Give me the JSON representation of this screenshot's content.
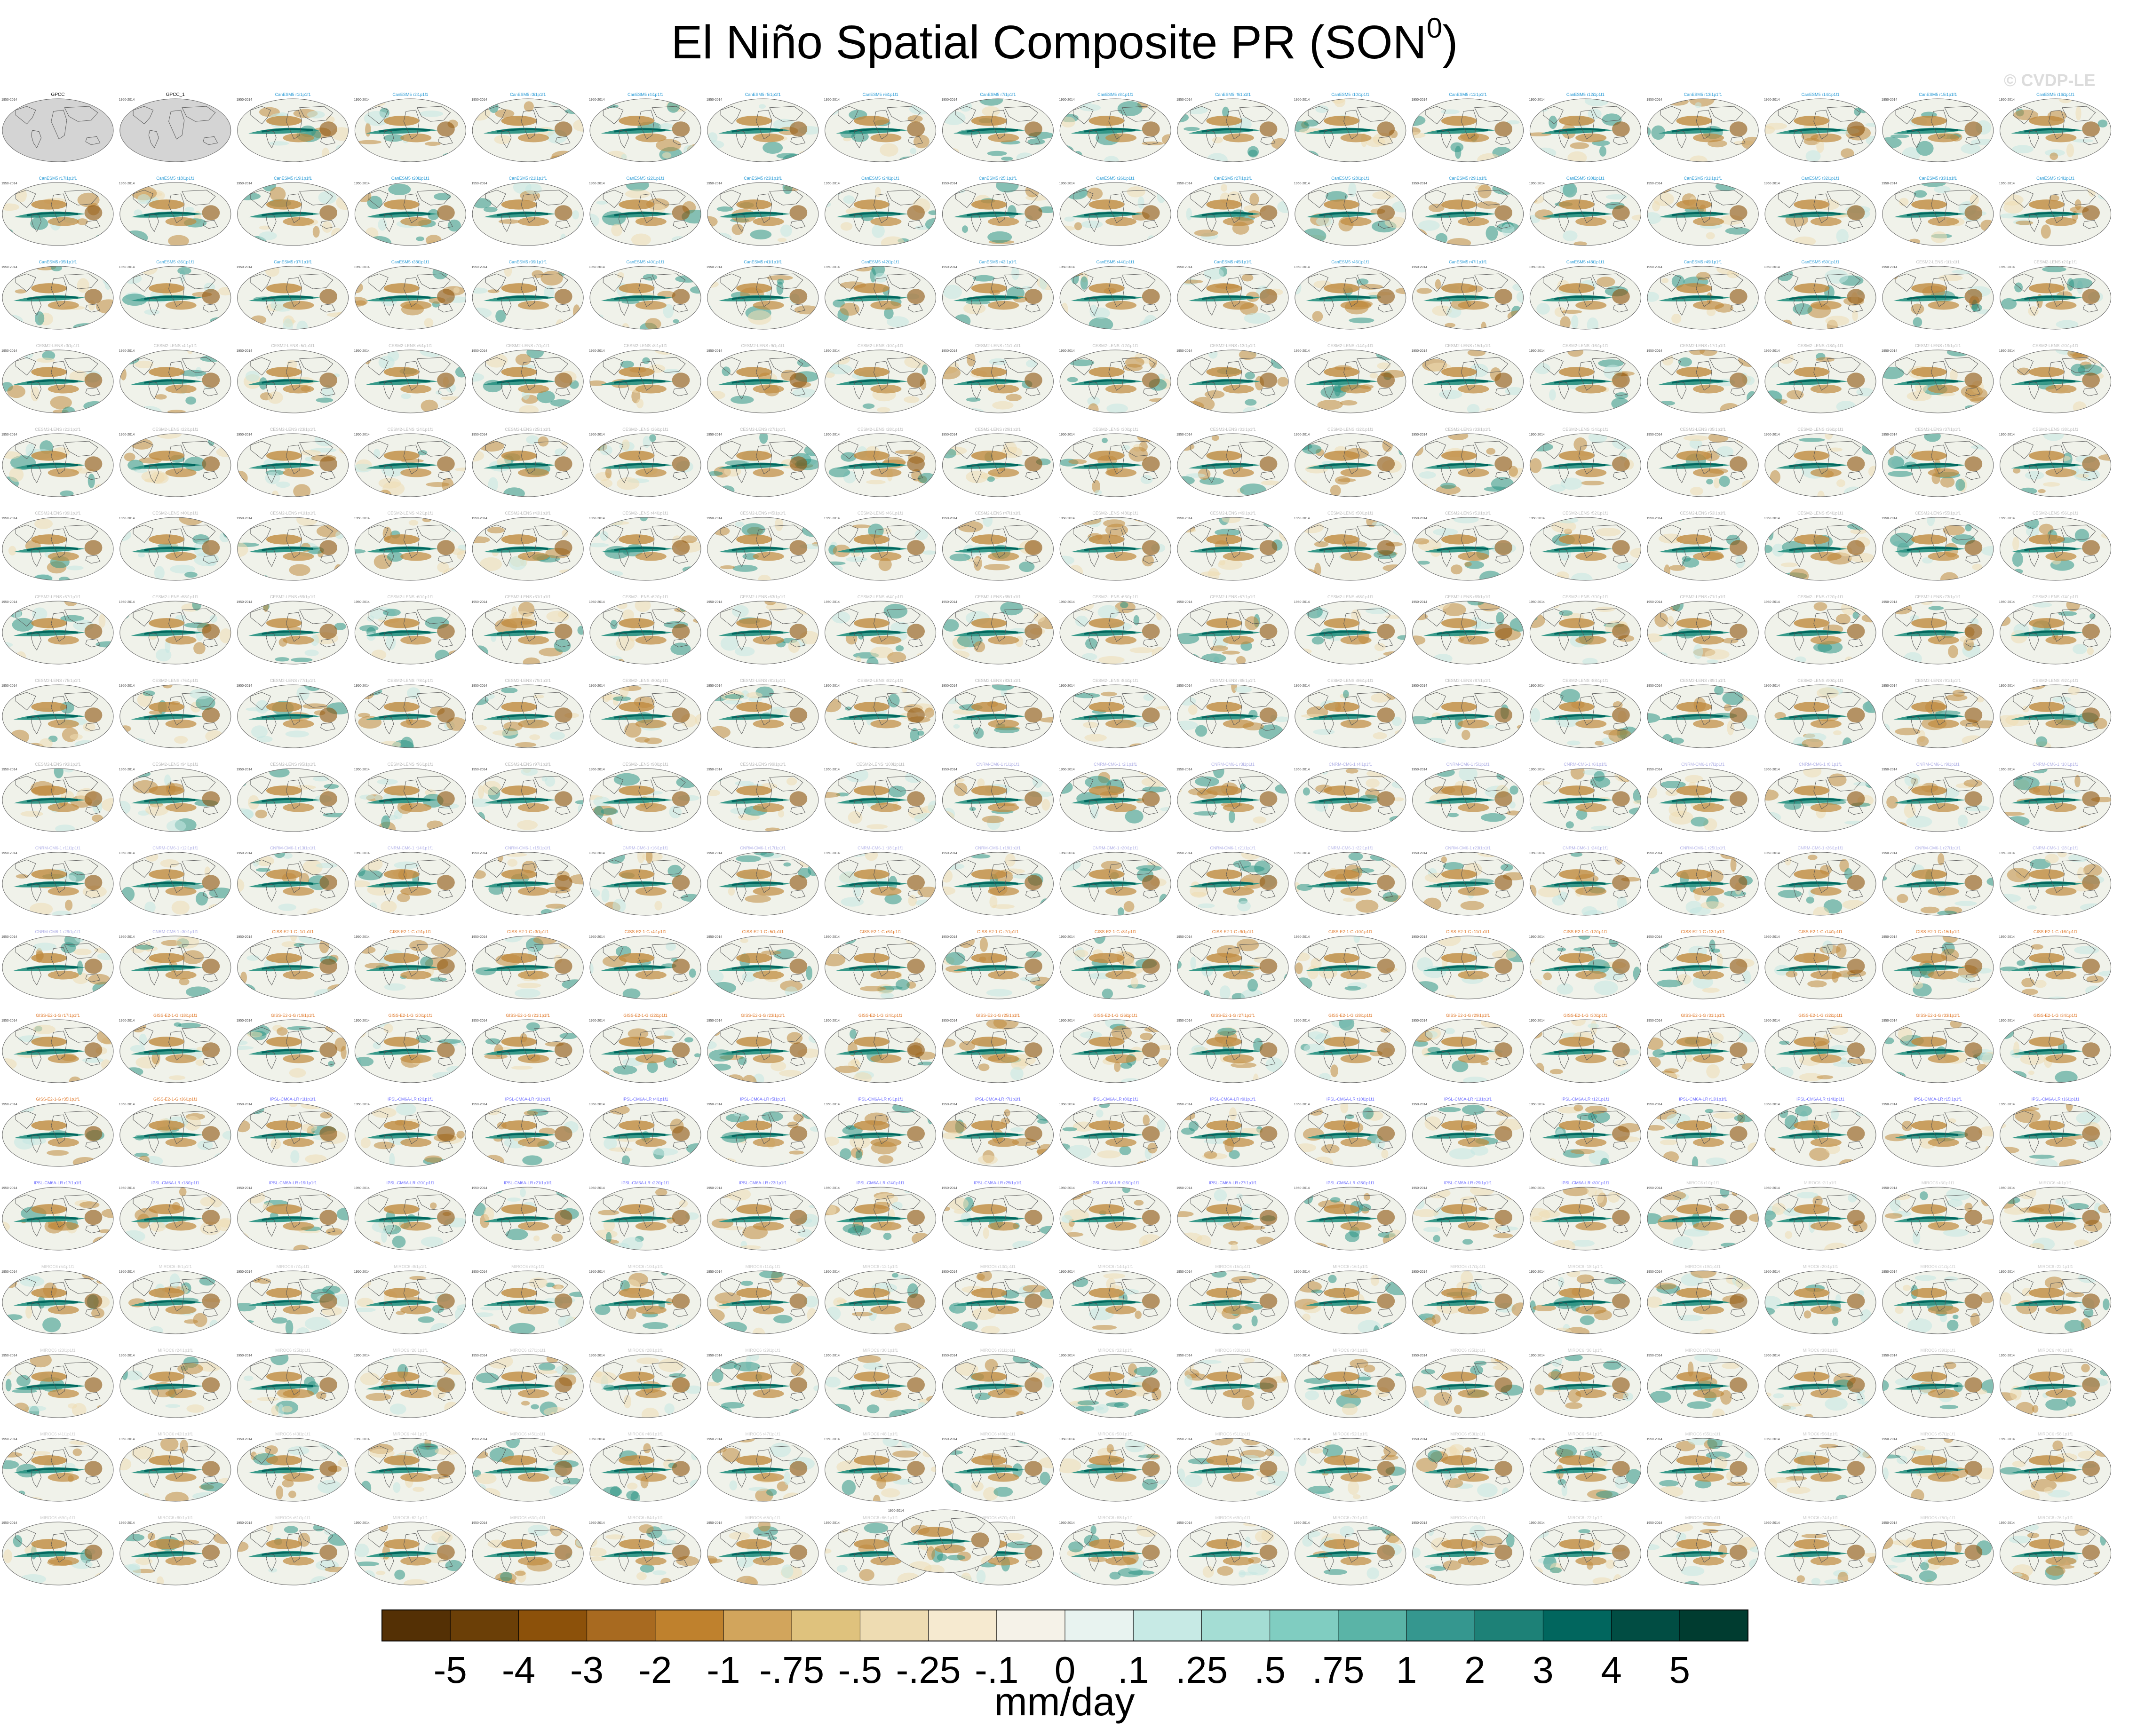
{
  "figure": {
    "title_text": "El Niño Spatial Composite PR (SON",
    "title_sup": "0",
    "title_close": ")",
    "watermark": "© CVDP-LE"
  },
  "colors": {
    "dry_main": "#bf8a3d",
    "dry_dark": "#8c510a",
    "dry_light": "#eedcb2",
    "wet_main": "#2e9585",
    "wet_dark": "#01665e",
    "wet_light": "#c5e8e1",
    "ocean_base": "#f0f2ea",
    "obs_land": "#d4d4d4",
    "coast": "#555555"
  },
  "panels": {
    "period_label": "1950-2014",
    "observation_labels": [
      "GPCC",
      "GPCC_1"
    ],
    "observation_count": 2,
    "model_rows": 18,
    "model_columns": 18,
    "extra_bottom_panel": true,
    "model_groups": [
      {
        "name": "CanESM5",
        "color": "#2a9bd6",
        "count": 50
      },
      {
        "name": "CESM2-LENS",
        "color": "#bbbbbb",
        "count": 100
      },
      {
        "name": "CNRM-CM6-1",
        "color": "#b0b0e6",
        "count": 30
      },
      {
        "name": "GISS-E2-1-G",
        "color": "#e07a2c",
        "count": 36
      },
      {
        "name": "IPSL-CM6A-LR",
        "color": "#6b6bff",
        "count": 30
      },
      {
        "name": "MIROC6",
        "color": "#cccccc",
        "count": 76
      }
    ]
  },
  "colorbar": {
    "units": "mm/day",
    "colors": [
      "#543005",
      "#6b3f07",
      "#8c510a",
      "#a86a20",
      "#bf812d",
      "#d2a55c",
      "#dfc27d",
      "#eedcb2",
      "#f6ead0",
      "#f5f2e8",
      "#e8f3f0",
      "#c7eae5",
      "#a4ddd4",
      "#80cdc1",
      "#5ab4a7",
      "#35978f",
      "#1d8177",
      "#01665e",
      "#014d43",
      "#003c30"
    ],
    "tick_labels": [
      "-5",
      "-4",
      "-3",
      "-2",
      "-1",
      "-.75",
      "-.5",
      "-.25",
      "-.1",
      "0",
      ".1",
      ".25",
      ".5",
      ".75",
      "1",
      "2",
      "3",
      "4",
      "5"
    ],
    "levels": [
      -5,
      -4,
      -3,
      -2,
      -1,
      -0.75,
      -0.5,
      -0.25,
      -0.1,
      0,
      0.1,
      0.25,
      0.5,
      0.75,
      1,
      2,
      3,
      4,
      5
    ]
  },
  "chart_data": {
    "type": "heatmap",
    "title": "El Niño Spatial Composite PR (SON0)",
    "variable": "PR",
    "season": "SON",
    "units": "mm/day",
    "projection": "global map panels, one per dataset",
    "color_scale": "brown (negative) to teal (positive)",
    "contour_levels": [
      -5,
      -4,
      -3,
      -2,
      -1,
      -0.75,
      -0.5,
      -0.25,
      -0.1,
      0,
      0.1,
      0.25,
      0.5,
      0.75,
      1,
      2,
      3,
      4,
      5
    ]
  }
}
